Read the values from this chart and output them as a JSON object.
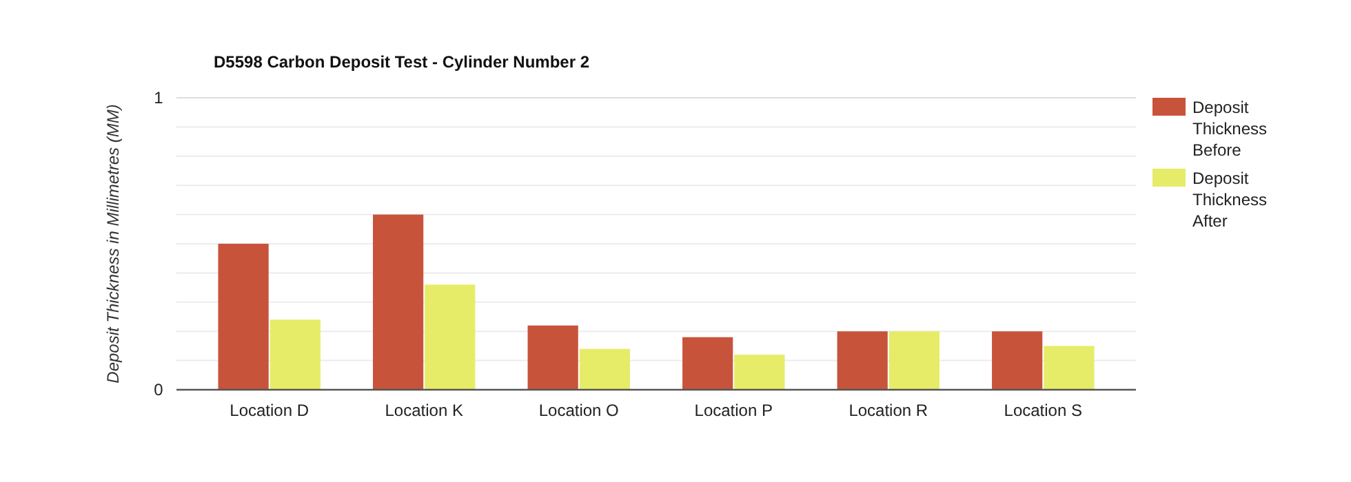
{
  "chart_data": {
    "type": "bar",
    "title": "D5598 Carbon Deposit Test - Cylinder Number 2",
    "ylabel": "Deposit Thickness in Millimetres (MM)",
    "categories": [
      "Location D",
      "Location K",
      "Location O",
      "Location P",
      "Location R",
      "Location S"
    ],
    "series": [
      {
        "name": "Deposit Thickness Before",
        "color": "#c8533b",
        "values": [
          0.5,
          0.6,
          0.22,
          0.18,
          0.2,
          0.2
        ]
      },
      {
        "name": "Deposit Thickness After",
        "color": "#e6ec68",
        "values": [
          0.24,
          0.36,
          0.14,
          0.12,
          0.2,
          0.15
        ]
      }
    ],
    "ylim": [
      0,
      1
    ],
    "yticks": [
      0,
      {
        "value": 0.1,
        "label": null
      },
      {
        "value": 0.2,
        "label": null
      },
      {
        "value": 0.3,
        "label": null
      },
      {
        "value": 0.4,
        "label": null
      },
      {
        "value": 0.5,
        "label": null
      },
      {
        "value": 0.6,
        "label": null
      },
      {
        "value": 0.7,
        "label": null
      },
      {
        "value": 0.8,
        "label": null
      },
      {
        "value": 0.9,
        "label": null
      },
      1
    ],
    "grid": "y",
    "legend": "right"
  }
}
